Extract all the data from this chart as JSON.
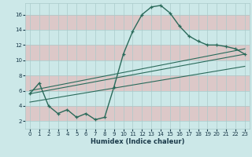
{
  "background_color": "#cce8e8",
  "pink_color": "#dcc8c8",
  "grid_color": "#aacaca",
  "line_color": "#2a6a5a",
  "x_label": "Humidex (Indice chaleur)",
  "xlim": [
    -0.5,
    23.5
  ],
  "ylim": [
    1,
    17.5
  ],
  "yticks": [
    2,
    4,
    6,
    8,
    10,
    12,
    14,
    16
  ],
  "xticks": [
    0,
    1,
    2,
    3,
    4,
    5,
    6,
    7,
    8,
    9,
    10,
    11,
    12,
    13,
    14,
    15,
    16,
    17,
    18,
    19,
    20,
    21,
    22,
    23
  ],
  "curve_x": [
    0,
    1,
    2,
    3,
    4,
    5,
    6,
    7,
    8,
    9,
    10,
    11,
    12,
    13,
    14,
    15,
    16,
    17,
    18,
    19,
    20,
    21,
    22,
    23
  ],
  "curve_y": [
    5.6,
    7.0,
    4.0,
    3.0,
    3.5,
    2.5,
    3.0,
    2.2,
    2.5,
    6.5,
    10.8,
    13.8,
    16.0,
    17.0,
    17.2,
    16.2,
    14.5,
    13.2,
    12.5,
    12.0,
    12.0,
    11.8,
    11.5,
    10.8
  ],
  "line1_x": [
    0,
    23
  ],
  "line1_y": [
    5.6,
    10.8
  ],
  "line2_x": [
    0,
    23
  ],
  "line2_y": [
    4.5,
    9.2
  ],
  "line3_x": [
    0,
    23
  ],
  "line3_y": [
    6.0,
    11.5
  ]
}
